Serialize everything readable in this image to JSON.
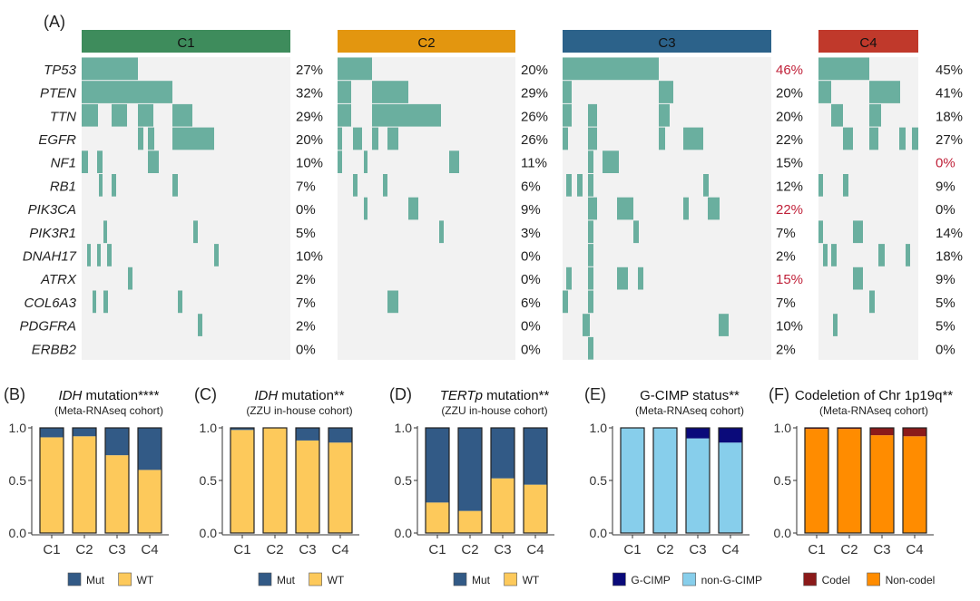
{
  "panel_a": {
    "label": "(A)",
    "clusters": [
      "C1",
      "C2",
      "C3",
      "C4"
    ],
    "cluster_colors": [
      "#3e8c5c",
      "#e3960f",
      "#2c628a",
      "#c0392b"
    ],
    "cell_color": "#6aaf9f",
    "bg_color": "#f2f2f2",
    "highlight_color": "#c0223a",
    "genes": [
      "TP53",
      "PTEN",
      "TTN",
      "EGFR",
      "NF1",
      "RB1",
      "PIK3CA",
      "PIK3R1",
      "DNAH17",
      "ATRX",
      "COL6A3",
      "PDGFRA",
      "ERBB2"
    ],
    "percents": [
      [
        "27%",
        "32%",
        "29%",
        "20%",
        "10%",
        "7%",
        "0%",
        "5%",
        "10%",
        "2%",
        "7%",
        "2%",
        "0%"
      ],
      [
        "20%",
        "29%",
        "26%",
        "26%",
        "11%",
        "6%",
        "9%",
        "3%",
        "0%",
        "0%",
        "6%",
        "0%",
        "0%"
      ],
      [
        "46%",
        "20%",
        "20%",
        "22%",
        "15%",
        "12%",
        "22%",
        "7%",
        "2%",
        "15%",
        "7%",
        "10%",
        "2%"
      ],
      [
        "45%",
        "41%",
        "18%",
        "27%",
        "0%",
        "9%",
        "0%",
        "14%",
        "18%",
        "9%",
        "5%",
        "5%",
        "0%"
      ]
    ],
    "highlighted": [
      [
        2,
        0
      ],
      [
        2,
        6
      ],
      [
        2,
        9
      ],
      [
        3,
        4
      ]
    ]
  },
  "chart_data": [
    {
      "type": "bar",
      "stacked": true,
      "panel": "(B)",
      "title_italic": "IDH",
      "title_rest": " mutation****",
      "subtitle": "(Meta-RNAseq cohort)",
      "categories": [
        "C1",
        "C2",
        "C3",
        "C4"
      ],
      "series": [
        {
          "name": "WT",
          "color": "#fdc95b",
          "values": [
            0.91,
            0.92,
            0.74,
            0.6
          ]
        },
        {
          "name": "Mut",
          "color": "#325a86",
          "values": [
            0.09,
            0.08,
            0.26,
            0.4
          ]
        }
      ],
      "legend": [
        "Mut",
        "WT"
      ],
      "yticks": [
        "0.0",
        "0.5",
        "1.0"
      ],
      "ylim": [
        0,
        1
      ]
    },
    {
      "type": "bar",
      "stacked": true,
      "panel": "(C)",
      "title_italic": "IDH",
      "title_rest": " mutation**",
      "subtitle": "(ZZU in-house cohort)",
      "categories": [
        "C1",
        "C2",
        "C3",
        "C4"
      ],
      "series": [
        {
          "name": "WT",
          "color": "#fdc95b",
          "values": [
            0.98,
            1.0,
            0.88,
            0.86
          ]
        },
        {
          "name": "Mut",
          "color": "#325a86",
          "values": [
            0.02,
            0.0,
            0.12,
            0.14
          ]
        }
      ],
      "legend": [
        "Mut",
        "WT"
      ],
      "yticks": [
        "0.0",
        "0.5",
        "1.0"
      ],
      "ylim": [
        0,
        1
      ]
    },
    {
      "type": "bar",
      "stacked": true,
      "panel": "(D)",
      "title_italic": "TERTp",
      "title_rest": " mutation**",
      "subtitle": "(ZZU in-house cohort)",
      "categories": [
        "C1",
        "C2",
        "C3",
        "C4"
      ],
      "series": [
        {
          "name": "WT",
          "color": "#fdc95b",
          "values": [
            0.29,
            0.21,
            0.52,
            0.46
          ]
        },
        {
          "name": "Mut",
          "color": "#325a86",
          "values": [
            0.71,
            0.79,
            0.48,
            0.54
          ]
        }
      ],
      "legend": [
        "Mut",
        "WT"
      ],
      "yticks": [
        "0.0",
        "0.5",
        "1.0"
      ],
      "ylim": [
        0,
        1
      ]
    },
    {
      "type": "bar",
      "stacked": true,
      "panel": "(E)",
      "title_italic": "",
      "title_rest": "G-CIMP status**",
      "subtitle": "(Meta-RNAseq cohort)",
      "categories": [
        "C1",
        "C2",
        "C3",
        "C4"
      ],
      "series": [
        {
          "name": "non-G-CIMP",
          "color": "#87ceeb",
          "values": [
            1.0,
            1.0,
            0.9,
            0.86
          ]
        },
        {
          "name": "G-CIMP",
          "color": "#0a0a7a",
          "values": [
            0.0,
            0.0,
            0.1,
            0.14
          ]
        }
      ],
      "legend": [
        "G-CIMP",
        "non-G-CIMP"
      ],
      "yticks": [
        "0.0",
        "0.5",
        "1.0"
      ],
      "ylim": [
        0,
        1
      ]
    },
    {
      "type": "bar",
      "stacked": true,
      "panel": "(F)",
      "title_italic": "",
      "title_rest": "Codeletion of Chr 1p19q**",
      "subtitle": "(Meta-RNAseq cohort)",
      "categories": [
        "C1",
        "C2",
        "C3",
        "C4"
      ],
      "series": [
        {
          "name": "Non-codel",
          "color": "#ff8c00",
          "values": [
            0.99,
            0.99,
            0.93,
            0.92
          ]
        },
        {
          "name": "Codel",
          "color": "#8b1a1a",
          "values": [
            0.01,
            0.01,
            0.07,
            0.08
          ]
        }
      ],
      "legend": [
        "Codel",
        "Non-codel"
      ],
      "yticks": [
        "0.0",
        "0.5",
        "1.0"
      ],
      "ylim": [
        0,
        1
      ]
    }
  ]
}
